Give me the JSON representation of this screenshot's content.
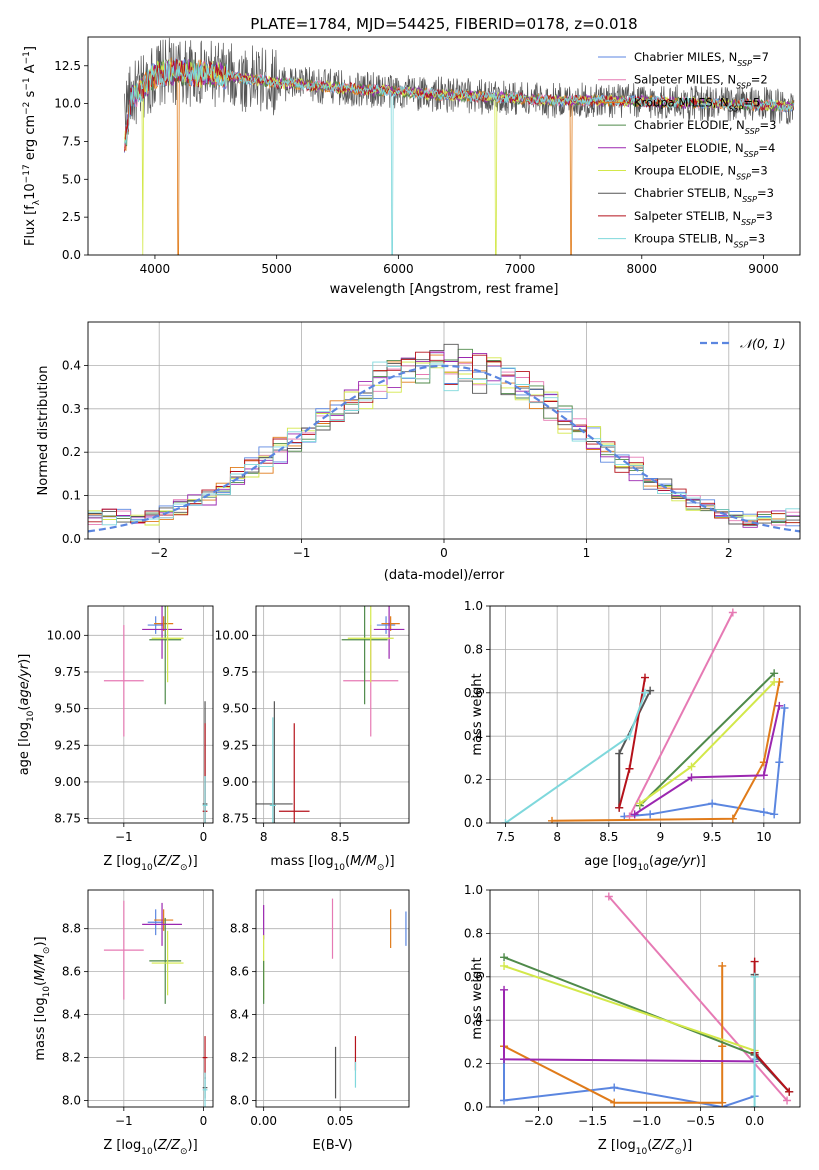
{
  "figure": {
    "title": "PLATE=1784, MJD=54425, FIBERID=0178, z=0.018"
  },
  "models": [
    {
      "key": "cm",
      "label": "Chabrier MILES, N",
      "sub": "SSP",
      "suffix": "=7",
      "color": "#5b86e0"
    },
    {
      "key": "sm",
      "label": "Salpeter MILES, N",
      "sub": "SSP",
      "suffix": "=2",
      "color": "#e67ab4"
    },
    {
      "key": "km",
      "label": "Kroupa MILES, N",
      "sub": "SSP",
      "suffix": "=5",
      "color": "#e07b1a"
    },
    {
      "key": "ce",
      "label": "Chabrier ELODIE, N",
      "sub": "SSP",
      "suffix": "=3",
      "color": "#4f8a4a"
    },
    {
      "key": "se",
      "label": "Salpeter ELODIE, N",
      "sub": "SSP",
      "suffix": "=4",
      "color": "#9b27b0"
    },
    {
      "key": "ke",
      "label": "Kroupa ELODIE, N",
      "sub": "SSP",
      "suffix": "=3",
      "color": "#d3e84a"
    },
    {
      "key": "cs",
      "label": "Chabrier STELIB, N",
      "sub": "SSP",
      "suffix": "=3",
      "color": "#555555"
    },
    {
      "key": "ss",
      "label": "Salpeter STELIB, N",
      "sub": "SSP",
      "suffix": "=3",
      "color": "#b5121b"
    },
    {
      "key": "ks",
      "label": "Kroupa STELIB, N",
      "sub": "SSP",
      "suffix": "=3",
      "color": "#7fd8dc"
    }
  ],
  "chart_data": [
    {
      "id": "spectrum",
      "type": "line",
      "xlabel": "wavelength [Angstrom, rest frame]",
      "ylabel": "Flux [f_λ10^-17 erg cm^-2 s^-1 A^-1]",
      "xlim": [
        3450,
        9300
      ],
      "ylim": [
        0,
        14.4
      ],
      "xticks": [
        4000,
        5000,
        6000,
        7000,
        8000,
        9000
      ],
      "yticks": [
        0.0,
        2.5,
        5.0,
        7.5,
        10.0,
        12.5
      ],
      "ytick_labels": [
        "0.0",
        "2.5",
        "5.0",
        "7.5",
        "10.0",
        "12.5"
      ],
      "grid": false,
      "legend": "top-right",
      "continuum": {
        "x": [
          3750,
          3800,
          3900,
          4000,
          4100,
          4200,
          4300,
          4500,
          4800,
          5000,
          5300,
          5600,
          6000,
          6300,
          6600,
          6900,
          7200,
          7500,
          7800,
          8200,
          8600,
          9000,
          9250
        ],
        "y": [
          9.6,
          10.4,
          11.0,
          11.9,
          12.1,
          12.1,
          12.0,
          11.9,
          11.6,
          11.4,
          11.2,
          11.0,
          10.8,
          10.6,
          10.5,
          10.4,
          10.2,
          10.2,
          10.2,
          10.1,
          10.0,
          9.9,
          9.8
        ]
      },
      "dips": [
        {
          "model": "ke",
          "x": 3900,
          "y": 0.0
        },
        {
          "model": "km",
          "x": 4190,
          "y": 0.0
        },
        {
          "model": "ks",
          "x": 5950,
          "y": 0.0
        },
        {
          "model": "ke",
          "x": 6800,
          "y": 0.0
        },
        {
          "model": "km",
          "x": 7420,
          "y": 0.0
        }
      ]
    },
    {
      "id": "residuals",
      "type": "line",
      "xlabel": "(data-model)/error",
      "ylabel": "Normed distribution",
      "xlim": [
        -2.5,
        2.5
      ],
      "ylim": [
        0,
        0.5
      ],
      "xticks": [
        -2,
        -1,
        0,
        1,
        2
      ],
      "yticks": [
        0.0,
        0.1,
        0.2,
        0.3,
        0.4
      ],
      "ytick_labels": [
        "0.0",
        "0.1",
        "0.2",
        "0.3",
        "0.4"
      ],
      "grid": true,
      "legend": "top-right",
      "reference": {
        "name": "𝒩(0, 1)",
        "mean": 0,
        "sd": 1,
        "color": "#5b86e0"
      },
      "bin_width": 0.1
    },
    {
      "id": "age_vs_Z",
      "type": "scatter",
      "xlabel": "Z [log10(Z/Z⊙)]",
      "ylabel": "age  [log10(age/yr)]",
      "xlim": [
        -1.45,
        0.12
      ],
      "ylim": [
        8.72,
        10.2
      ],
      "xticks": [
        -1,
        0
      ],
      "yticks": [
        8.75,
        9.0,
        9.25,
        9.5,
        9.75,
        10.0
      ],
      "ytick_labels": [
        "8.75",
        "9.00",
        "9.25",
        "9.50",
        "9.75",
        "10.00"
      ],
      "grid": true,
      "points": [
        {
          "model": "sm",
          "x": -1.0,
          "y": 9.69,
          "xerr": 0.25,
          "yerr": 0.38
        },
        {
          "model": "cm",
          "x": -0.6,
          "y": 10.07,
          "xerr": 0.1,
          "yerr": 0.06
        },
        {
          "model": "km",
          "x": -0.5,
          "y": 10.08,
          "xerr": 0.12,
          "yerr": 0.05
        },
        {
          "model": "ce",
          "x": -0.48,
          "y": 9.97,
          "xerr": 0.2,
          "yerr": 0.44
        },
        {
          "model": "se",
          "x": -0.52,
          "y": 10.04,
          "xerr": 0.25,
          "yerr": 0.2
        },
        {
          "model": "ke",
          "x": -0.45,
          "y": 9.98,
          "xerr": 0.2,
          "yerr": 0.3
        },
        {
          "model": "cs",
          "x": 0.02,
          "y": 8.85,
          "xerr": 0.03,
          "yerr": 0.7
        },
        {
          "model": "ss",
          "x": 0.02,
          "y": 8.8,
          "xerr": 0.03,
          "yerr": 0.6
        },
        {
          "model": "ks",
          "x": 0.02,
          "y": 8.84,
          "xerr": 0.03,
          "yerr": 0.2
        }
      ]
    },
    {
      "id": "age_vs_mass",
      "type": "scatter",
      "xlabel": "mass [log10(M/M⊙)]",
      "ylabel": "",
      "xlim": [
        7.95,
        8.95
      ],
      "ylim": [
        8.72,
        10.2
      ],
      "xticks": [
        8.0,
        8.5
      ],
      "yticks": [
        8.75,
        9.0,
        9.25,
        9.5,
        9.75,
        10.0
      ],
      "ytick_labels": [
        "8.75",
        "9.00",
        "9.25",
        "9.50",
        "9.75",
        "10.00"
      ],
      "grid": true,
      "points": [
        {
          "model": "sm",
          "x": 8.7,
          "y": 9.69,
          "xerr": 0.18,
          "yerr": 0.38
        },
        {
          "model": "cm",
          "x": 8.8,
          "y": 10.07,
          "xerr": 0.06,
          "yerr": 0.06
        },
        {
          "model": "km",
          "x": 8.83,
          "y": 10.08,
          "xerr": 0.06,
          "yerr": 0.05
        },
        {
          "model": "ce",
          "x": 8.66,
          "y": 9.97,
          "xerr": 0.15,
          "yerr": 0.44
        },
        {
          "model": "se",
          "x": 8.82,
          "y": 10.04,
          "xerr": 0.1,
          "yerr": 0.2
        },
        {
          "model": "ke",
          "x": 8.7,
          "y": 9.98,
          "xerr": 0.15,
          "yerr": 0.3
        },
        {
          "model": "cs",
          "x": 8.07,
          "y": 8.85,
          "xerr": 0.12,
          "yerr": 0.7
        },
        {
          "model": "ss",
          "x": 8.2,
          "y": 8.8,
          "xerr": 0.1,
          "yerr": 0.6
        },
        {
          "model": "ks",
          "x": 8.06,
          "y": 8.84,
          "xerr": 0.02,
          "yerr": 0.6
        }
      ]
    },
    {
      "id": "mass_weight_vs_age",
      "type": "line",
      "xlabel": "age  [log10(age/yr)]",
      "ylabel": "mass weight",
      "xlim": [
        7.35,
        10.35
      ],
      "ylim": [
        0,
        1.0
      ],
      "xticks": [
        7.5,
        8.0,
        8.5,
        9.0,
        9.5,
        10.0
      ],
      "yticks": [
        0.0,
        0.2,
        0.4,
        0.6,
        0.8,
        1.0
      ],
      "ytick_labels": [
        "0.0",
        "0.2",
        "0.4",
        "0.6",
        "0.8",
        "1.0"
      ],
      "grid": true,
      "series": [
        {
          "model": "cm",
          "x": [
            8.65,
            8.9,
            9.5,
            10.0,
            10.1,
            10.15,
            10.2
          ],
          "y": [
            0.03,
            0.04,
            0.09,
            0.05,
            0.04,
            0.28,
            0.53
          ]
        },
        {
          "model": "sm",
          "x": [
            8.7,
            9.7
          ],
          "y": [
            0.03,
            0.97
          ]
        },
        {
          "model": "km",
          "x": [
            7.95,
            9.7,
            10.0,
            10.15
          ],
          "y": [
            0.01,
            0.02,
            0.28,
            0.65
          ]
        },
        {
          "model": "ce",
          "x": [
            8.8,
            10.1
          ],
          "y": [
            0.08,
            0.69
          ]
        },
        {
          "model": "se",
          "x": [
            8.75,
            9.3,
            10.0,
            10.15
          ],
          "y": [
            0.04,
            0.21,
            0.22,
            0.54
          ]
        },
        {
          "model": "ke",
          "x": [
            8.8,
            9.3,
            10.1
          ],
          "y": [
            0.09,
            0.26,
            0.65
          ]
        },
        {
          "model": "cs",
          "x": [
            8.6,
            8.6,
            8.9
          ],
          "y": [
            0.07,
            0.32,
            0.61
          ]
        },
        {
          "model": "ss",
          "x": [
            8.6,
            8.7,
            8.85
          ],
          "y": [
            0.07,
            0.25,
            0.67
          ]
        },
        {
          "model": "ks",
          "x": [
            7.5,
            8.7,
            8.85
          ],
          "y": [
            0.0,
            0.4,
            0.6
          ]
        }
      ]
    },
    {
      "id": "mass_vs_Z",
      "type": "scatter",
      "xlabel": "Z [log10(Z/Z⊙)]",
      "ylabel": "mass [log10(M/M⊙)]",
      "xlim": [
        -1.45,
        0.12
      ],
      "ylim": [
        7.97,
        8.98
      ],
      "xticks": [
        -1,
        0
      ],
      "yticks": [
        8.0,
        8.2,
        8.4,
        8.6,
        8.8
      ],
      "ytick_labels": [
        "8.0",
        "8.2",
        "8.4",
        "8.6",
        "8.8"
      ],
      "grid": true,
      "points": [
        {
          "model": "sm",
          "x": -1.0,
          "y": 8.7,
          "xerr": 0.25,
          "yerr": 0.23
        },
        {
          "model": "cm",
          "x": -0.6,
          "y": 8.83,
          "xerr": 0.1,
          "yerr": 0.06
        },
        {
          "model": "km",
          "x": -0.5,
          "y": 8.84,
          "xerr": 0.12,
          "yerr": 0.05
        },
        {
          "model": "ce",
          "x": -0.48,
          "y": 8.65,
          "xerr": 0.2,
          "yerr": 0.2
        },
        {
          "model": "se",
          "x": -0.52,
          "y": 8.82,
          "xerr": 0.25,
          "yerr": 0.1
        },
        {
          "model": "ke",
          "x": -0.45,
          "y": 8.64,
          "xerr": 0.2,
          "yerr": 0.15
        },
        {
          "model": "cs",
          "x": 0.02,
          "y": 8.06,
          "xerr": 0.03,
          "yerr": 0.05
        },
        {
          "model": "ss",
          "x": 0.02,
          "y": 8.2,
          "xerr": 0.03,
          "yerr": 0.1
        },
        {
          "model": "ks",
          "x": 0.02,
          "y": 8.05,
          "xerr": 0.03,
          "yerr": 0.08
        }
      ]
    },
    {
      "id": "mass_vs_ebv",
      "type": "scatter",
      "xlabel": "E(B-V)",
      "ylabel": "",
      "xlim": [
        -0.005,
        0.095
      ],
      "ylim": [
        7.97,
        8.98
      ],
      "xticks": [
        0.0,
        0.05
      ],
      "xtick_labels": [
        "0.00",
        "0.05"
      ],
      "yticks": [
        8.0,
        8.2,
        8.4,
        8.6,
        8.8
      ],
      "ytick_labels": [
        "8.0",
        "8.2",
        "8.4",
        "8.6",
        "8.8"
      ],
      "grid": true,
      "points": [
        {
          "model": "se",
          "x": 0.0,
          "y": 8.83,
          "yerr": 0.08
        },
        {
          "model": "ke",
          "x": 0.0,
          "y": 8.62,
          "yerr": 0.15
        },
        {
          "model": "ce",
          "x": 0.0,
          "y": 8.55,
          "yerr": 0.1
        },
        {
          "model": "sm",
          "x": 0.045,
          "y": 8.8,
          "yerr": 0.14
        },
        {
          "model": "cs",
          "x": 0.047,
          "y": 8.13,
          "yerr": 0.12
        },
        {
          "model": "ss",
          "x": 0.06,
          "y": 8.22,
          "yerr": 0.08
        },
        {
          "model": "ks",
          "x": 0.06,
          "y": 8.12,
          "yerr": 0.06
        },
        {
          "model": "km",
          "x": 0.083,
          "y": 8.8,
          "yerr": 0.09
        },
        {
          "model": "cm",
          "x": 0.093,
          "y": 8.8,
          "yerr": 0.08
        }
      ]
    },
    {
      "id": "mass_weight_vs_Z",
      "type": "line",
      "xlabel": "Z [log10(Z/Z⊙)]",
      "ylabel": "mass weight",
      "xlim": [
        -2.45,
        0.42
      ],
      "ylim": [
        0,
        1.0
      ],
      "xticks": [
        -2.0,
        -1.5,
        -1.0,
        -0.5,
        0.0
      ],
      "xtick_labels": [
        "−2.0",
        "−1.5",
        "−1.0",
        "−0.5",
        "0.0"
      ],
      "yticks": [
        0.0,
        0.2,
        0.4,
        0.6,
        0.8,
        1.0
      ],
      "ytick_labels": [
        "0.0",
        "0.2",
        "0.4",
        "0.6",
        "0.8",
        "1.0"
      ],
      "grid": true,
      "series": [
        {
          "model": "cm",
          "x": [
            -2.32,
            -2.32,
            -1.3,
            -0.3,
            0.0,
            0.0
          ],
          "y": [
            0.28,
            0.03,
            0.09,
            0.0,
            0.05,
            0.22
          ]
        },
        {
          "model": "sm",
          "x": [
            -1.35,
            0.3
          ],
          "y": [
            0.97,
            0.03
          ]
        },
        {
          "model": "km",
          "x": [
            -2.32,
            -1.3,
            -0.3,
            -0.3,
            -0.3
          ],
          "y": [
            0.28,
            0.02,
            0.02,
            0.28,
            0.65
          ]
        },
        {
          "model": "ce",
          "x": [
            -2.32,
            0.0
          ],
          "y": [
            0.69,
            0.24
          ]
        },
        {
          "model": "se",
          "x": [
            -2.32,
            -2.32,
            0.0
          ],
          "y": [
            0.54,
            0.22,
            0.21
          ]
        },
        {
          "model": "ke",
          "x": [
            -2.32,
            0.0
          ],
          "y": [
            0.65,
            0.26
          ]
        },
        {
          "model": "cs",
          "x": [
            0.0,
            0.0,
            0.32
          ],
          "y": [
            0.61,
            0.24,
            0.07
          ]
        },
        {
          "model": "ss",
          "x": [
            0.0,
            0.0,
            0.32
          ],
          "y": [
            0.67,
            0.25,
            0.07
          ]
        },
        {
          "model": "ks",
          "x": [
            0.0,
            0.0
          ],
          "y": [
            0.6,
            0.0
          ]
        }
      ]
    }
  ]
}
